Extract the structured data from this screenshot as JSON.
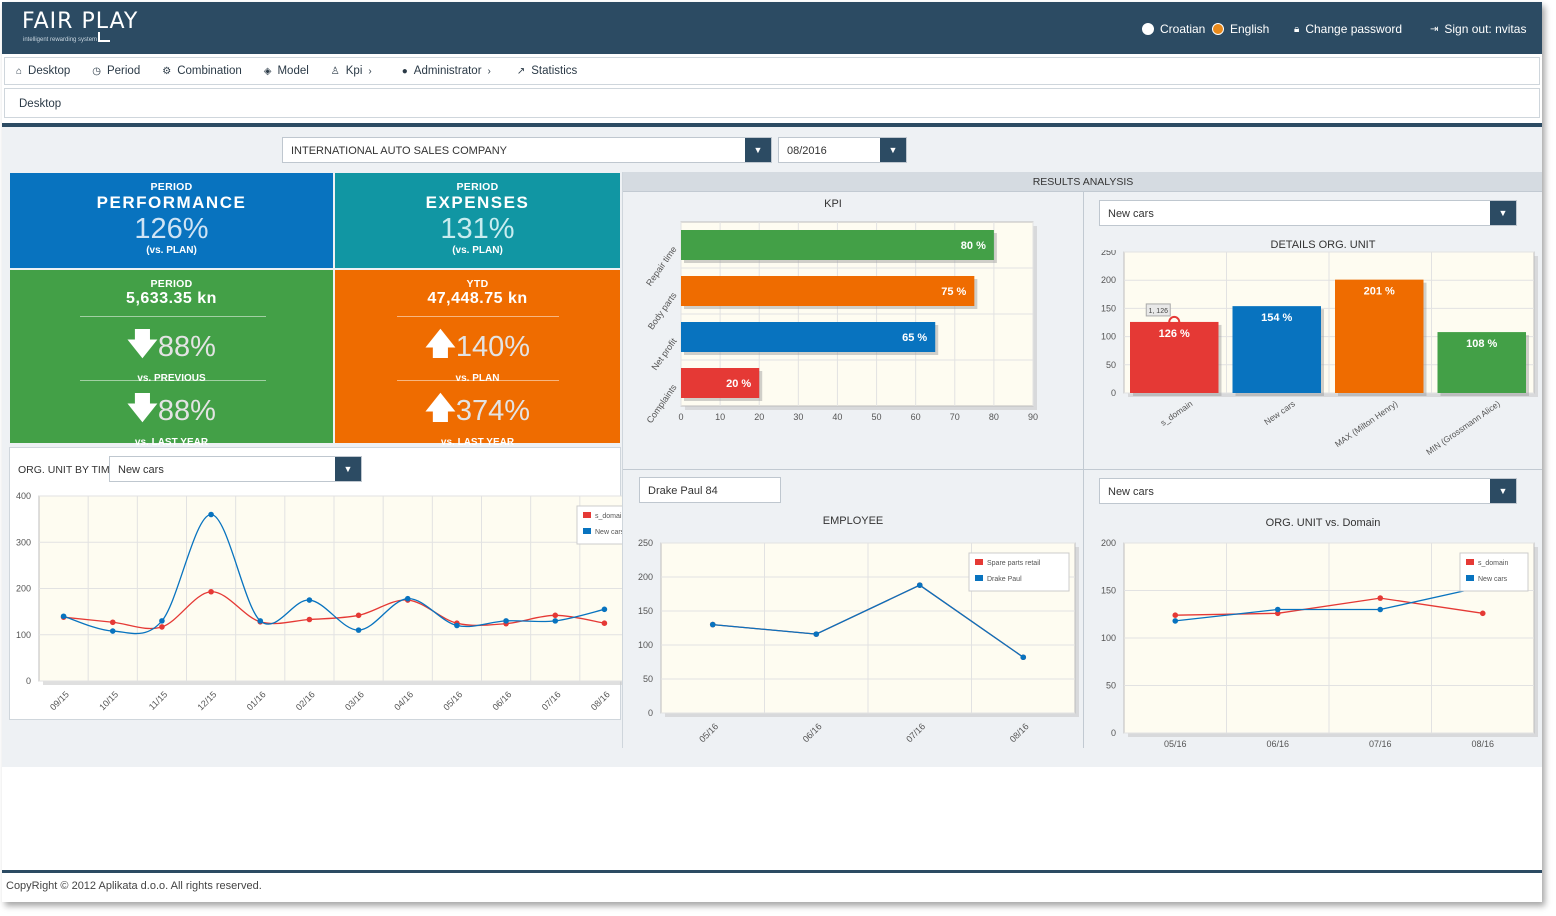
{
  "brand": {
    "name": "FAIR PLAY",
    "tagline": "intelligent rewarding system"
  },
  "top_right": {
    "lang_hr": "Croatian",
    "lang_en": "English",
    "change_password": "Change password",
    "sign_out": "Sign out: nvitas"
  },
  "nav": {
    "desktop": "Desktop",
    "period": "Period",
    "combination": "Combination",
    "model": "Model",
    "kpi": "Kpi",
    "administrator": "Administrator",
    "statistics": "Statistics"
  },
  "breadcrumb": "Desktop",
  "filters": {
    "company": "INTERNATIONAL AUTO SALES COMPANY",
    "period": "08/2016"
  },
  "tiles": {
    "performance": {
      "top": "PERIOD",
      "title": "PERFORMANCE",
      "value": "126%",
      "note": "(vs. PLAN)"
    },
    "expenses": {
      "top": "PERIOD",
      "title": "EXPENSES",
      "value": "131%",
      "note": "(vs. PLAN)"
    },
    "period_amount": {
      "top": "PERIOD",
      "value": "5,633.35 kn",
      "m1": "88%",
      "m1_label": "vs. PREVIOUS",
      "m2": "88%",
      "m2_label": "vs. LAST YEAR"
    },
    "ytd_amount": {
      "top": "YTD",
      "value": "47,448.75 kn",
      "m1": "140%",
      "m1_label": "vs. PLAN",
      "m2": "374%",
      "m2_label": "vs. LAST YEAR"
    }
  },
  "results_analysis": "RESULTS ANALYSIS",
  "org_time": {
    "label": "ORG. UNIT BY TIME",
    "select": "New cars"
  },
  "details_select": "New cars",
  "employee_select": "Drake Paul 84",
  "orgdomain_select": "New cars",
  "footer": "CopyRight © 2012 Aplikata d.o.o. All rights reserved.",
  "colors": {
    "navy": "#2c4b63",
    "blue": "#0873bf",
    "teal": "#1196a3",
    "green": "#43a047",
    "orange": "#ef6c00",
    "red": "#e53935",
    "plot_bg": "#fefcf1"
  },
  "chart_data": [
    {
      "id": "kpi",
      "type": "bar",
      "orientation": "horizontal",
      "title": "KPI",
      "categories": [
        "Repair time",
        "Body parts",
        "Net profit",
        "Complaints"
      ],
      "values": [
        80,
        75,
        65,
        20
      ],
      "labels": [
        "80 %",
        "75 %",
        "65 %",
        "20 %"
      ],
      "colors": [
        "#43a047",
        "#ef6c00",
        "#0873bf",
        "#e53935"
      ],
      "xlim": [
        0,
        90
      ],
      "xticks": [
        0,
        10,
        20,
        30,
        40,
        50,
        60,
        70,
        80,
        90
      ]
    },
    {
      "id": "details",
      "type": "bar",
      "title": "DETAILS ORG. UNIT",
      "categories": [
        "s_domain",
        "New cars",
        "MAX (Milton Henry)",
        "MIN (Grossmann Alice)"
      ],
      "values": [
        126,
        154,
        201,
        108
      ],
      "labels": [
        "126 %",
        "154 %",
        "201 %",
        "108 %"
      ],
      "colors": [
        "#e53935",
        "#0873bf",
        "#ef6c00",
        "#43a047"
      ],
      "ylim": [
        0,
        250
      ],
      "yticks": [
        0,
        50,
        100,
        150,
        200,
        250
      ],
      "tooltip": "1, 126"
    },
    {
      "id": "org_time",
      "type": "line",
      "smooth": true,
      "categories": [
        "09/15",
        "10/15",
        "11/15",
        "12/15",
        "01/16",
        "02/16",
        "03/16",
        "04/16",
        "05/16",
        "06/16",
        "07/16",
        "08/16"
      ],
      "series": [
        {
          "name": "s_domain",
          "color": "#e53935",
          "values": [
            138,
            127,
            117,
            193,
            128,
            133,
            142,
            175,
            125,
            124,
            142,
            125
          ]
        },
        {
          "name": "New cars",
          "color": "#0873bf",
          "values": [
            140,
            108,
            130,
            360,
            130,
            175,
            110,
            178,
            120,
            130,
            130,
            155
          ]
        }
      ],
      "ylim": [
        0,
        400
      ],
      "yticks": [
        0,
        100,
        200,
        300,
        400
      ],
      "legend": "top-right"
    },
    {
      "id": "employee",
      "type": "line",
      "title": "EMPLOYEE",
      "categories": [
        "05/16",
        "06/16",
        "07/16",
        "08/16"
      ],
      "series": [
        {
          "name": "Spare parts retail",
          "color": "#e53935",
          "values": [
            130,
            116,
            188,
            82
          ]
        },
        {
          "name": "Drake Paul",
          "color": "#0873bf",
          "values": [
            130,
            116,
            188,
            82
          ]
        }
      ],
      "ylim": [
        0,
        250
      ],
      "yticks": [
        0,
        50,
        100,
        150,
        200,
        250
      ],
      "legend": "top-right"
    },
    {
      "id": "orgdomain",
      "type": "line",
      "title": "ORG. UNIT vs. Domain",
      "categories": [
        "05/16",
        "06/16",
        "07/16",
        "08/16"
      ],
      "series": [
        {
          "name": "s_domain",
          "color": "#e53935",
          "values": [
            124,
            126,
            142,
            126
          ]
        },
        {
          "name": "New cars",
          "color": "#0873bf",
          "values": [
            118,
            130,
            130,
            154
          ]
        }
      ],
      "ylim": [
        0,
        200
      ],
      "yticks": [
        0,
        50,
        100,
        150,
        200
      ],
      "legend": "top-right"
    }
  ]
}
